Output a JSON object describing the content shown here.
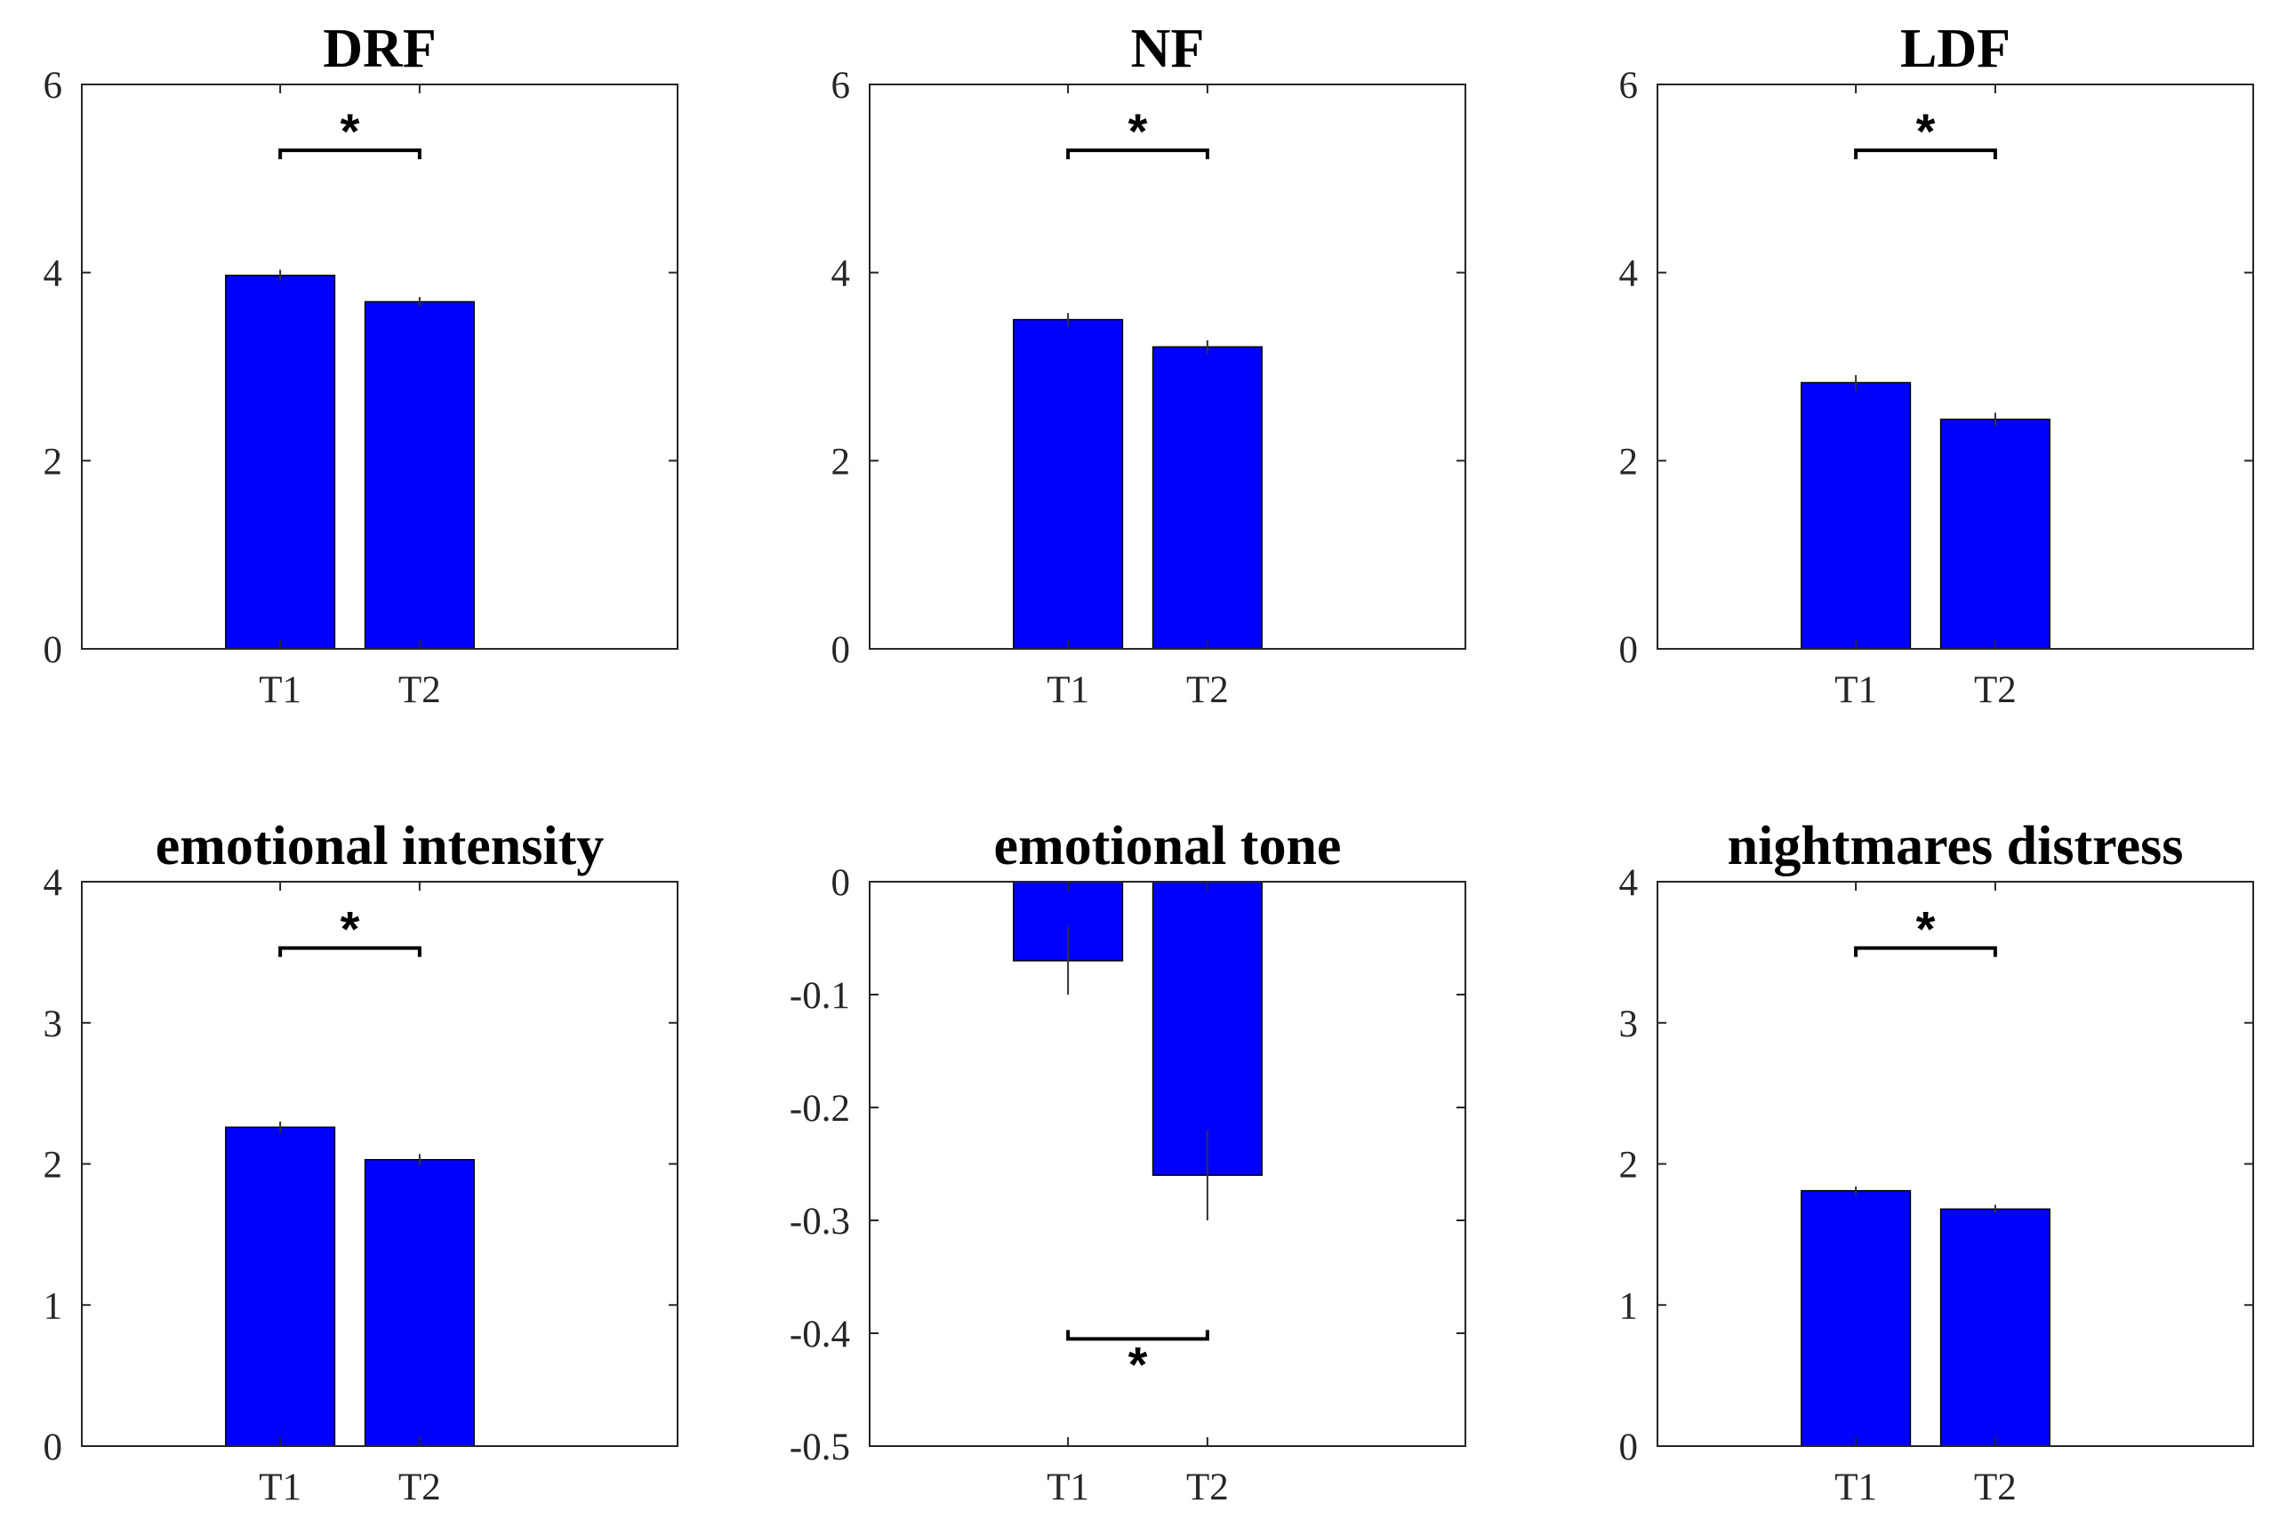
{
  "chart_data": [
    {
      "type": "bar",
      "title": "DRF",
      "categories": [
        "T1",
        "T2"
      ],
      "values": [
        3.97,
        3.69
      ],
      "errors": [
        0.06,
        0.05
      ],
      "ylim": [
        0,
        6
      ],
      "yticks": [
        0,
        2,
        4,
        6
      ],
      "ytick_labels": [
        "0",
        "2",
        "4",
        "6"
      ],
      "significance": {
        "label": "*",
        "between": [
          "T1",
          "T2"
        ],
        "y": 5.3,
        "placement": "above"
      },
      "bar_color": "#0000FF",
      "xlabel": "",
      "ylabel": ""
    },
    {
      "type": "bar",
      "title": "NF",
      "categories": [
        "T1",
        "T2"
      ],
      "values": [
        3.5,
        3.21
      ],
      "errors": [
        0.07,
        0.07
      ],
      "ylim": [
        0,
        6
      ],
      "yticks": [
        0,
        2,
        4,
        6
      ],
      "ytick_labels": [
        "0",
        "2",
        "4",
        "6"
      ],
      "significance": {
        "label": "*",
        "between": [
          "T1",
          "T2"
        ],
        "y": 5.3,
        "placement": "above"
      },
      "bar_color": "#0000FF",
      "xlabel": "",
      "ylabel": ""
    },
    {
      "type": "bar",
      "title": "LDF",
      "categories": [
        "T1",
        "T2"
      ],
      "values": [
        2.83,
        2.44
      ],
      "errors": [
        0.08,
        0.07
      ],
      "ylim": [
        0,
        6
      ],
      "yticks": [
        0,
        2,
        4,
        6
      ],
      "ytick_labels": [
        "0",
        "2",
        "4",
        "6"
      ],
      "significance": {
        "label": "*",
        "between": [
          "T1",
          "T2"
        ],
        "y": 5.3,
        "placement": "above"
      },
      "bar_color": "#0000FF",
      "xlabel": "",
      "ylabel": ""
    },
    {
      "type": "bar",
      "title": "emotional intensity",
      "categories": [
        "T1",
        "T2"
      ],
      "values": [
        2.26,
        2.03
      ],
      "errors": [
        0.04,
        0.04
      ],
      "ylim": [
        0,
        4
      ],
      "yticks": [
        0,
        1,
        2,
        3,
        4
      ],
      "ytick_labels": [
        "0",
        "1",
        "2",
        "3",
        "4"
      ],
      "significance": {
        "label": "*",
        "between": [
          "T1",
          "T2"
        ],
        "y": 3.53,
        "placement": "above"
      },
      "bar_color": "#0000FF",
      "xlabel": "",
      "ylabel": ""
    },
    {
      "type": "bar",
      "title": "emotional tone",
      "categories": [
        "T1",
        "T2"
      ],
      "values": [
        -0.07,
        -0.26
      ],
      "errors": [
        0.03,
        0.04
      ],
      "ylim": [
        -0.5,
        0
      ],
      "yticks": [
        -0.5,
        -0.4,
        -0.3,
        -0.2,
        -0.1,
        0
      ],
      "ytick_labels": [
        "-0.5",
        "-0.4",
        "-0.3",
        "-0.2",
        "-0.1",
        "0"
      ],
      "significance": {
        "label": "*",
        "between": [
          "T1",
          "T2"
        ],
        "y": -0.405,
        "placement": "below"
      },
      "bar_color": "#0000FF",
      "xlabel": "",
      "ylabel": ""
    },
    {
      "type": "bar",
      "title": "nightmares distress",
      "categories": [
        "T1",
        "T2"
      ],
      "values": [
        1.81,
        1.68
      ],
      "errors": [
        0.03,
        0.03
      ],
      "ylim": [
        0,
        4
      ],
      "yticks": [
        0,
        1,
        2,
        3,
        4
      ],
      "ytick_labels": [
        "0",
        "1",
        "2",
        "3",
        "4"
      ],
      "significance": {
        "label": "*",
        "between": [
          "T1",
          "T2"
        ],
        "y": 3.53,
        "placement": "above"
      },
      "bar_color": "#0000FF",
      "xlabel": "",
      "ylabel": ""
    }
  ]
}
